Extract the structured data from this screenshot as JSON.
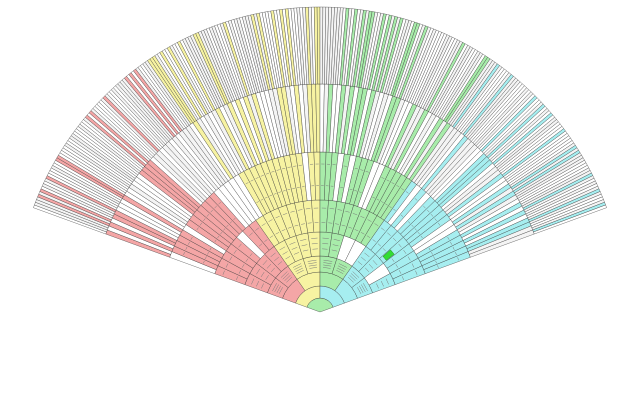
{
  "diagram": {
    "type": "fan-chart",
    "description_text": "",
    "branches": [
      {
        "name": "",
        "color": "#f4a6a6"
      },
      {
        "name": "",
        "color": "#f7f3a2"
      },
      {
        "name": "",
        "color": "#a8ecaa"
      },
      {
        "name": "",
        "color": "#a6eef0"
      }
    ],
    "neutral_color": "#ffffff",
    "outer_neutral_color": "#f4f4f4",
    "highlight_color": "#33dd33",
    "generations": 9
  }
}
